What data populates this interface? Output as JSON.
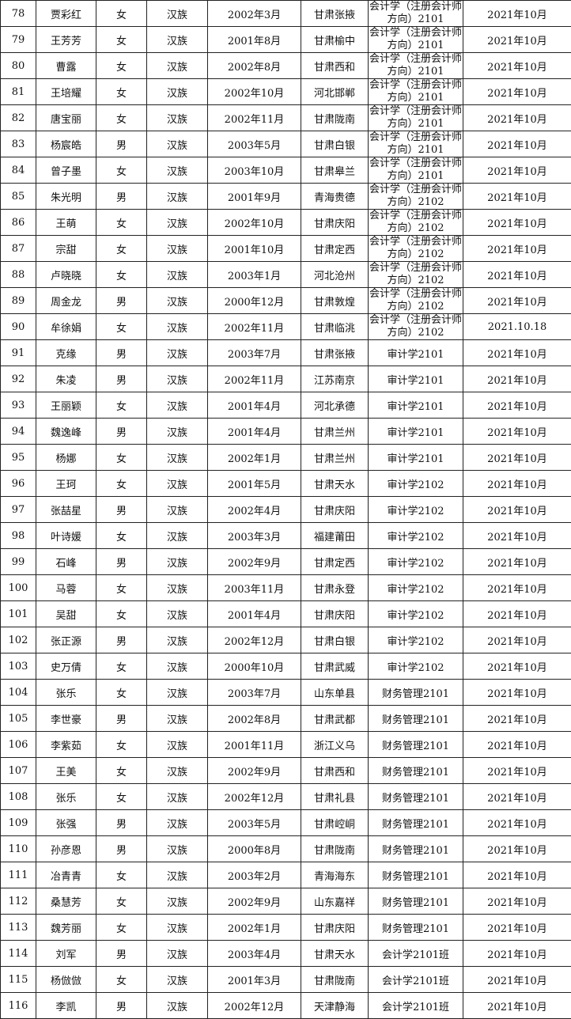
{
  "table": {
    "rows": [
      [
        "78",
        "贾彩红",
        "女",
        "汉族",
        "2002年3月",
        "甘肃张掖",
        "会计学（注册会计师方向）2101",
        "2021年10月"
      ],
      [
        "79",
        "王芳芳",
        "女",
        "汉族",
        "2001年8月",
        "甘肃榆中",
        "会计学（注册会计师方向）2101",
        "2021年10月"
      ],
      [
        "80",
        "曹露",
        "女",
        "汉族",
        "2002年8月",
        "甘肃西和",
        "会计学（注册会计师方向）2101",
        "2021年10月"
      ],
      [
        "81",
        "王培耀",
        "女",
        "汉族",
        "2002年10月",
        "河北邯郸",
        "会计学（注册会计师方向）2101",
        "2021年10月"
      ],
      [
        "82",
        "唐宝丽",
        "女",
        "汉族",
        "2002年11月",
        "甘肃陇南",
        "会计学（注册会计师方向）2101",
        "2021年10月"
      ],
      [
        "83",
        "杨宸皓",
        "男",
        "汉族",
        "2003年5月",
        "甘肃白银",
        "会计学（注册会计师方向）2101",
        "2021年10月"
      ],
      [
        "84",
        "曾子墨",
        "女",
        "汉族",
        "2003年10月",
        "甘肃皋兰",
        "会计学（注册会计师方向）2101",
        "2021年10月"
      ],
      [
        "85",
        "朱光明",
        "男",
        "汉族",
        "2001年9月",
        "青海贵德",
        "会计学（注册会计师方向）2102",
        "2021年10月"
      ],
      [
        "86",
        "王萌",
        "女",
        "汉族",
        "2002年10月",
        "甘肃庆阳",
        "会计学（注册会计师方向）2102",
        "2021年10月"
      ],
      [
        "87",
        "宗甜",
        "女",
        "汉族",
        "2001年10月",
        "甘肃定西",
        "会计学（注册会计师方向）2102",
        "2021年10月"
      ],
      [
        "88",
        "卢晓晓",
        "女",
        "汉族",
        "2003年1月",
        "河北沧州",
        "会计学（注册会计师方向）2102",
        "2021年10月"
      ],
      [
        "89",
        "周金龙",
        "男",
        "汉族",
        "2000年12月",
        "甘肃敦煌",
        "会计学（注册会计师方向）2102",
        "2021年10月"
      ],
      [
        "90",
        "牟徐娟",
        "女",
        "汉族",
        "2002年11月",
        "甘肃临洮",
        "会计学（注册会计师方向）2102",
        "2021.10.18"
      ],
      [
        "91",
        "克缘",
        "男",
        "汉族",
        "2003年7月",
        "甘肃张掖",
        "审计学2101",
        "2021年10月"
      ],
      [
        "92",
        "朱凌",
        "男",
        "汉族",
        "2002年11月",
        "江苏南京",
        "审计学2101",
        "2021年10月"
      ],
      [
        "93",
        "王丽颖",
        "女",
        "汉族",
        "2001年4月",
        "河北承德",
        "审计学2101",
        "2021年10月"
      ],
      [
        "94",
        "魏逸峰",
        "男",
        "汉族",
        "2001年4月",
        "甘肃兰州",
        "审计学2101",
        "2021年10月"
      ],
      [
        "95",
        "杨娜",
        "女",
        "汉族",
        "2002年1月",
        "甘肃兰州",
        "审计学2101",
        "2021年10月"
      ],
      [
        "96",
        "王珂",
        "女",
        "汉族",
        "2001年5月",
        "甘肃天水",
        "审计学2102",
        "2021年10月"
      ],
      [
        "97",
        "张喆星",
        "男",
        "汉族",
        "2002年4月",
        "甘肃庆阳",
        "审计学2102",
        "2021年10月"
      ],
      [
        "98",
        "叶诗媛",
        "女",
        "汉族",
        "2003年3月",
        "福建莆田",
        "审计学2102",
        "2021年10月"
      ],
      [
        "99",
        "石峰",
        "男",
        "汉族",
        "2002年9月",
        "甘肃定西",
        "审计学2102",
        "2021年10月"
      ],
      [
        "100",
        "马蓉",
        "女",
        "汉族",
        "2003年11月",
        "甘肃永登",
        "审计学2102",
        "2021年10月"
      ],
      [
        "101",
        "吴甜",
        "女",
        "汉族",
        "2001年4月",
        "甘肃庆阳",
        "审计学2102",
        "2021年10月"
      ],
      [
        "102",
        "张正源",
        "男",
        "汉族",
        "2002年12月",
        "甘肃白银",
        "审计学2102",
        "2021年10月"
      ],
      [
        "103",
        "史万倩",
        "女",
        "汉族",
        "2000年10月",
        "甘肃武威",
        "审计学2102",
        "2021年10月"
      ],
      [
        "104",
        "张乐",
        "女",
        "汉族",
        "2003年7月",
        "山东单县",
        "财务管理2101",
        "2021年10月"
      ],
      [
        "105",
        "李世豪",
        "男",
        "汉族",
        "2002年8月",
        "甘肃武都",
        "财务管理2101",
        "2021年10月"
      ],
      [
        "106",
        "李紫茹",
        "女",
        "汉族",
        "2001年11月",
        "浙江义乌",
        "财务管理2101",
        "2021年10月"
      ],
      [
        "107",
        "王美",
        "女",
        "汉族",
        "2002年9月",
        "甘肃西和",
        "财务管理2101",
        "2021年10月"
      ],
      [
        "108",
        "张乐",
        "女",
        "汉族",
        "2002年12月",
        "甘肃礼县",
        "财务管理2101",
        "2021年10月"
      ],
      [
        "109",
        "张强",
        "男",
        "汉族",
        "2003年5月",
        "甘肃崆峒",
        "财务管理2101",
        "2021年10月"
      ],
      [
        "110",
        "孙彦恩",
        "男",
        "汉族",
        "2000年8月",
        "甘肃陇南",
        "财务管理2101",
        "2021年10月"
      ],
      [
        "111",
        "冶青青",
        "女",
        "汉族",
        "2003年2月",
        "青海海东",
        "财务管理2101",
        "2021年10月"
      ],
      [
        "112",
        "桑慧芳",
        "女",
        "汉族",
        "2002年9月",
        "山东嘉祥",
        "财务管理2101",
        "2021年10月"
      ],
      [
        "113",
        "魏芳丽",
        "女",
        "汉族",
        "2002年1月",
        "甘肃庆阳",
        "财务管理2101",
        "2021年10月"
      ],
      [
        "114",
        "刘军",
        "男",
        "汉族",
        "2003年4月",
        "甘肃天水",
        "会计学2101班",
        "2021年10月"
      ],
      [
        "115",
        "杨倣倣",
        "女",
        "汉族",
        "2001年3月",
        "甘肃陇南",
        "会计学2101班",
        "2021年10月"
      ],
      [
        "116",
        "李凯",
        "男",
        "汉族",
        "2002年12月",
        "天津静海",
        "会计学2101班",
        "2021年10月"
      ]
    ]
  }
}
